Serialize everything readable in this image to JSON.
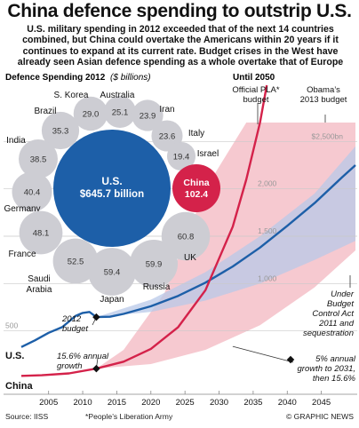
{
  "title": "China defence spending to outstrip U.S.",
  "intro": "U.S. military spending in 2012 exceeded that of the next 14 countries combined, but China could overtake the Americans within 20 years if it continues to expand at its current rate. Budget crises in the West have already seen Asian defence spending as a whole overtake that of Europe",
  "left_panel": {
    "heading": "Defence Spending 2012",
    "unit": "($ billions)"
  },
  "right_panel": {
    "heading": "Until 2050"
  },
  "source": "Source: IISS",
  "footnote": "*People’s Liberation Army",
  "credit": "© GRAPHIC NEWS",
  "colors": {
    "us": "#1d5fa8",
    "china": "#d4224a",
    "country_bubble": "#cdcdd3",
    "us_band": "#b8c8e8",
    "china_band": "#f4bcc4",
    "grid": "#c9c9c9"
  },
  "chart_data": [
    {
      "type": "bubble",
      "title": "Defence Spending 2012",
      "unit": "$ billions",
      "countries": [
        {
          "name": "U.S.",
          "value": 645.7,
          "value_label": "$645.7 billion"
        },
        {
          "name": "China",
          "value": 102.4,
          "value_label": "102.4"
        },
        {
          "name": "S. Korea",
          "value": 29.0,
          "value_label": "29.0"
        },
        {
          "name": "Australia",
          "value": 25.1,
          "value_label": "25.1"
        },
        {
          "name": "Iran",
          "value": 23.9,
          "value_label": "23.9"
        },
        {
          "name": "Italy",
          "value": 23.6,
          "value_label": "23.6"
        },
        {
          "name": "Israel",
          "value": 19.4,
          "value_label": "19.4"
        },
        {
          "name": "Brazil",
          "value": 35.3,
          "value_label": "35.3"
        },
        {
          "name": "India",
          "value": 38.5,
          "value_label": "38.5"
        },
        {
          "name": "Germany",
          "value": 40.4,
          "value_label": "40.4"
        },
        {
          "name": "France",
          "value": 48.1,
          "value_label": "48.1"
        },
        {
          "name": "Saudi Arabia",
          "value": 52.5,
          "value_label": "52.5"
        },
        {
          "name": "Japan",
          "value": 59.4,
          "value_label": "59.4"
        },
        {
          "name": "Russia",
          "value": 59.9,
          "value_label": "59.9"
        },
        {
          "name": "UK",
          "value": 60.8,
          "value_label": "60.8"
        }
      ]
    },
    {
      "type": "line",
      "title": "Until 2050",
      "x_ticks": [
        2005,
        2010,
        2015,
        2020,
        2025,
        2030,
        2035,
        2040,
        2045
      ],
      "y_ticks": [
        {
          "value": 500,
          "label": "500"
        },
        {
          "value": 1000,
          "label": "1,000"
        },
        {
          "value": 1500,
          "label": "1,500"
        },
        {
          "value": 2000,
          "label": "2,000"
        },
        {
          "value": 2500,
          "label": "$2,500bn"
        }
      ],
      "xlim": [
        2001,
        2050
      ],
      "ylim": [
        0,
        2700
      ],
      "series": [
        {
          "name": "U.S.",
          "x": [
            2001,
            2003,
            2005,
            2007,
            2008,
            2009,
            2010,
            2011,
            2012,
            2014,
            2016,
            2020,
            2024,
            2028,
            2032,
            2036,
            2040,
            2044,
            2048,
            2050
          ],
          "y": [
            330,
            400,
            480,
            540,
            600,
            660,
            690,
            700,
            646,
            650,
            680,
            760,
            870,
            1010,
            1180,
            1380,
            1610,
            1850,
            2120,
            2250
          ]
        },
        {
          "name": "China",
          "x": [
            2001,
            2004,
            2008,
            2012,
            2016,
            2020,
            2024,
            2028,
            2032,
            2034,
            2036,
            2037
          ],
          "y": [
            25,
            32,
            52,
            102,
            175,
            310,
            540,
            930,
            1600,
            2100,
            2700,
            3100
          ]
        }
      ],
      "labels": {
        "us_series": "U.S.",
        "china_series": "China",
        "budget_2012": "2012 budget",
        "china_growth": "15.6% annual growth",
        "pla_budget": "Official PLA* budget",
        "obama_budget": "Obama’s 2013 budget",
        "sequestration": "Under Budget Control Act 2011 and sequestration",
        "us_growth": "5% annual growth to 2031, then 15.6%"
      }
    }
  ]
}
